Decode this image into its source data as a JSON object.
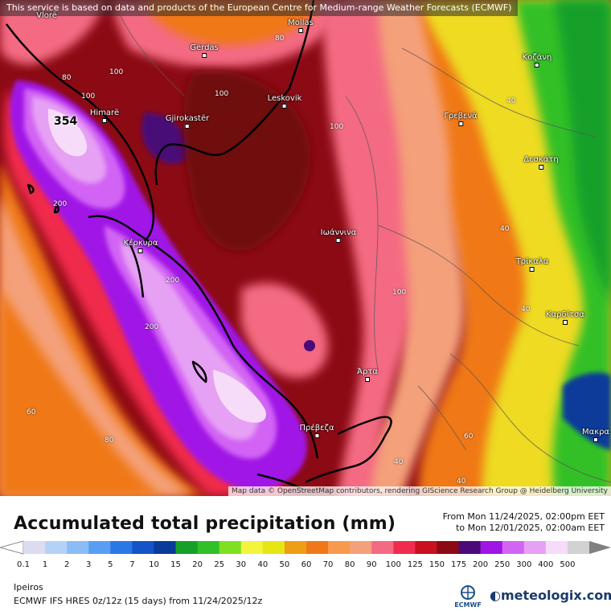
{
  "notice": "This service is based on data and products of the European Centre for Medium-range Weather Forecasts (ECMWF)",
  "attribution": "Map data © OpenStreetMap contributors, rendering GIScience Research Group @ Heidelberg University",
  "title": "Accumulated total precipitation (mm)",
  "period": {
    "from": "From Mon 11/24/2025, 02:00pm EET",
    "to": "to Mon 12/01/2025, 02:00am EET"
  },
  "region": "Ipeiros",
  "model": "ECMWF IFS HRES 0z/12z (15 days) from 11/24/2025/12z",
  "brand": "meteologix.com",
  "ecmwf_logo_text": "ECMWF",
  "max_value": "354",
  "cities": [
    {
      "name": "Vlorë"
    },
    {
      "name": "Mollas"
    },
    {
      "name": "Gërdas"
    },
    {
      "name": "Himarë"
    },
    {
      "name": "Leskovik"
    },
    {
      "name": "Gjirokastër"
    },
    {
      "name": "Κοζάνη"
    },
    {
      "name": "Γρεβενά"
    },
    {
      "name": "Δεσκάτη"
    },
    {
      "name": "Ιωάννινα"
    },
    {
      "name": "Κέρκυρα"
    },
    {
      "name": "Τρίκαλα"
    },
    {
      "name": "Καρδίτσα"
    },
    {
      "name": "Άρτα"
    },
    {
      "name": "Πρέβεζα"
    },
    {
      "name": "Μακρα"
    }
  ],
  "contour_labels": [
    "80",
    "80",
    "100",
    "100",
    "100",
    "100",
    "200",
    "200",
    "200",
    "100",
    "40",
    "40",
    "40",
    "60",
    "80",
    "60",
    "40",
    "40"
  ],
  "legend": {
    "labels": [
      "0.1",
      "1",
      "2",
      "3",
      "5",
      "7",
      "10",
      "15",
      "20",
      "25",
      "30",
      "40",
      "50",
      "60",
      "70",
      "80",
      "90",
      "100",
      "125",
      "150",
      "175",
      "200",
      "250",
      "300",
      "400",
      "500"
    ],
    "colors": [
      "#dcdcf0",
      "#b4d2f8",
      "#8cbcf6",
      "#5a9ef4",
      "#2a78e6",
      "#1454c8",
      "#0a3a9a",
      "#16a02a",
      "#30c028",
      "#7ee020",
      "#f4f43c",
      "#e6e614",
      "#ee9e14",
      "#f07818",
      "#f79a4e",
      "#f4a07a",
      "#f46a82",
      "#f02c4c",
      "#c8101e",
      "#8c0a14",
      "#4a0a78",
      "#a014e6",
      "#d264f4",
      "#e6a0f4",
      "#f6dcf8",
      "#d2d2d2"
    ]
  }
}
